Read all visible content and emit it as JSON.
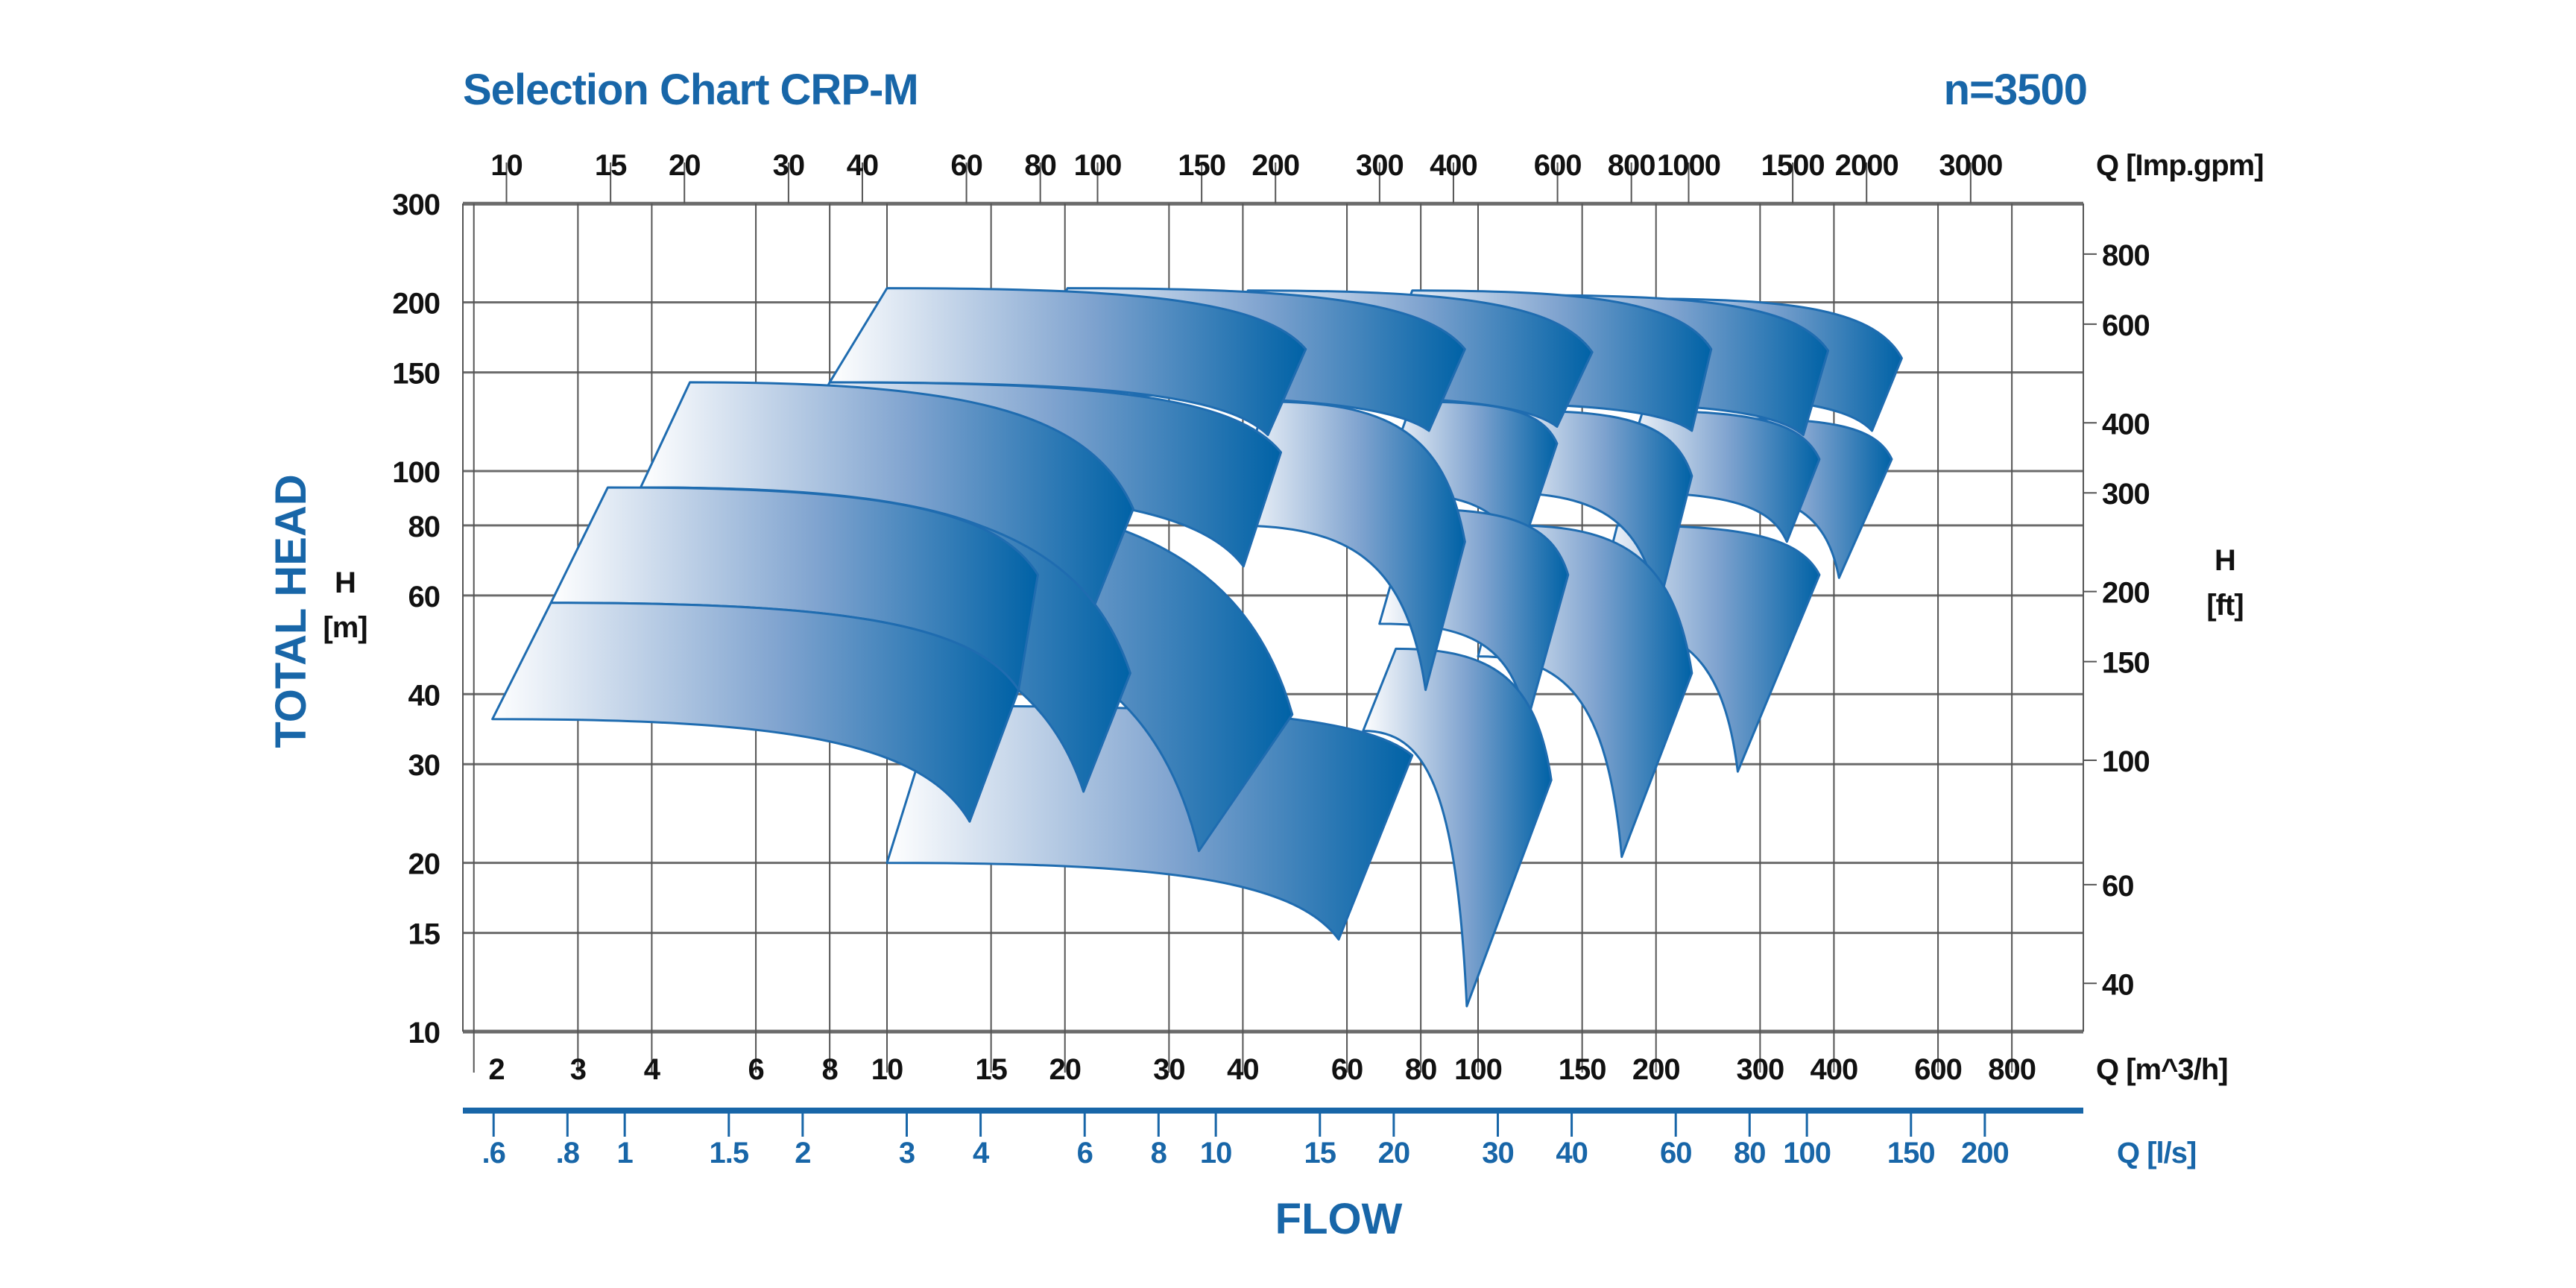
{
  "chart_data": {
    "type": "area",
    "title": "Selection Chart CRP-M",
    "speed_label": "n=3500",
    "ylabel": "TOTAL HEAD",
    "ylabel_left_unit": [
      "H",
      "[m]"
    ],
    "ylabel_right_unit": [
      "H",
      "[ft]"
    ],
    "xlabel": "FLOW",
    "x_scale": "log",
    "y_scale": "log",
    "xlim_m3h": [
      1.9,
      1050
    ],
    "ylim_m": [
      10,
      300
    ],
    "grid": true,
    "colors": {
      "accent": "#1866a8",
      "fill_dark": "#0062a6",
      "fill_light": "#ffffff",
      "grid": "#666666"
    },
    "y_ticks_m": [
      "10",
      "15",
      "20",
      "30",
      "40",
      "60",
      "80",
      "100",
      "150",
      "200",
      "300"
    ],
    "y_ticks_ft": [
      "40",
      "60",
      "100",
      "150",
      "200",
      "300",
      "400",
      "600",
      "800"
    ],
    "x_axis_m3h": {
      "label": "Q [m^3/h]",
      "ticks": [
        "2",
        "3",
        "4",
        "6",
        "8",
        "10",
        "15",
        "20",
        "30",
        "40",
        "60",
        "80",
        "100",
        "150",
        "200",
        "300",
        "400",
        "600",
        "800"
      ]
    },
    "x_axis_gpm": {
      "label": "Q [Imp.gpm]",
      "ticks": [
        "10",
        "15",
        "20",
        "30",
        "40",
        "60",
        "80",
        "100",
        "150",
        "200",
        "300",
        "400",
        "600",
        "800",
        "1000",
        "1500",
        "2000",
        "3000"
      ]
    },
    "x_axis_ls": {
      "label": "Q [l/s]",
      "ticks": [
        ".6",
        ".8",
        "1",
        "1.5",
        "2",
        "3",
        "4",
        "6",
        "8",
        "10",
        "15",
        "20",
        "30",
        "40",
        "60",
        "80",
        "100",
        "150",
        "200"
      ]
    },
    "regions_note": "each region corners [Q m3/h, H m]: top-left, top-right, bottom-right, bottom-left",
    "regions": [
      {
        "tl": [
          190,
          203
        ],
        "tr": [
          521,
          159
        ],
        "br": [
          464,
          118
        ],
        "bl": [
          162,
          137
        ]
      },
      {
        "tl": [
          278,
          124
        ],
        "tr": [
          501,
          105
        ],
        "br": [
          408,
          64.5
        ],
        "bl": [
          245,
          91.6
        ]
      },
      {
        "tl": [
          121,
          206
        ],
        "tr": [
          391,
          164
        ],
        "br": [
          355,
          116
        ],
        "bl": [
          103,
          133
        ]
      },
      {
        "tl": [
          190,
          128
        ],
        "tr": [
          378,
          105
        ],
        "br": [
          333,
          74.8
        ],
        "bl": [
          172,
          91.6
        ]
      },
      {
        "tl": [
          172,
          80
        ],
        "tr": [
          378,
          65.3
        ],
        "br": [
          275,
          29.1
        ],
        "bl": [
          156,
          53.4
        ]
      },
      {
        "tl": [
          77.4,
          210
        ],
        "tr": [
          248,
          165
        ],
        "br": [
          230,
          118
        ],
        "bl": [
          65.9,
          133
        ]
      },
      {
        "tl": [
          121,
          128
        ],
        "tr": [
          230,
          98
        ],
        "br": [
          202,
          57.1
        ],
        "bl": [
          107,
          91.6
        ]
      },
      {
        "tl": [
          114,
          80
        ],
        "tr": [
          230,
          43.6
        ],
        "br": [
          175,
          20.5
        ],
        "bl": [
          100,
          46.7
        ]
      },
      {
        "tl": [
          40.8,
          210
        ],
        "tr": [
          156,
          163
        ],
        "br": [
          136,
          120
        ],
        "bl": [
          35.9,
          137
        ]
      },
      {
        "tl": [
          77.4,
          133
        ],
        "tr": [
          136,
          112
        ],
        "br": [
          117,
          69.9
        ],
        "bl": [
          68.1,
          91.6
        ]
      },
      {
        "tl": [
          77.4,
          85.6
        ],
        "tr": [
          142,
          65.3
        ],
        "br": [
          121,
          35.6
        ],
        "bl": [
          68.1,
          53.4
        ]
      },
      {
        "tl": [
          72.6,
          48.2
        ],
        "tr": [
          133,
          28.1
        ],
        "br": [
          95.7,
          11.1
        ],
        "bl": [
          63.9,
          34.4
        ]
      },
      {
        "tl": [
          20.2,
          212
        ],
        "tr": [
          95,
          165
        ],
        "br": [
          82.6,
          118
        ],
        "bl": [
          16.7,
          137
        ]
      },
      {
        "tl": [
          43.5,
          133
        ],
        "tr": [
          95,
          74.8
        ],
        "br": [
          81.5,
          40.7
        ],
        "bl": [
          38.3,
          80
        ]
      },
      {
        "tl": [
          12.1,
          38.1
        ],
        "tr": [
          77.4,
          31.1
        ],
        "br": [
          58.1,
          14.6
        ],
        "bl": [
          10,
          20
        ]
      },
      {
        "tl": [
          10,
          212
        ],
        "tr": [
          51.1,
          165
        ],
        "br": [
          44.1,
          116
        ],
        "bl": [
          8,
          144
        ]
      },
      {
        "tl": [
          8,
          144
        ],
        "tr": [
          46.4,
          108
        ],
        "br": [
          40.1,
          67.6
        ],
        "bl": [
          6.39,
          93.5
        ]
      },
      {
        "tl": [
          6.39,
          93.5
        ],
        "tr": [
          48.5,
          36.8
        ],
        "br": [
          33.7,
          21
        ],
        "bl": [
          5.27,
          58.2
        ]
      },
      {
        "tl": [
          4.64,
          144
        ],
        "tr": [
          26.1,
          85.6
        ],
        "br": [
          21.8,
          53.4
        ],
        "bl": [
          3.83,
          93.5
        ]
      },
      {
        "tl": [
          3.83,
          93.5
        ],
        "tr": [
          25.8,
          43.6
        ],
        "br": [
          21.5,
          26.8
        ],
        "bl": [
          3.16,
          58.2
        ]
      },
      {
        "tl": [
          3.37,
          93.5
        ],
        "tr": [
          18,
          65.3
        ],
        "br": [
          16.7,
          40.7
        ],
        "bl": [
          2.7,
          58.2
        ]
      },
      {
        "tl": [
          2.7,
          58.2
        ],
        "tr": [
          16.7,
          40.7
        ],
        "br": [
          13.8,
          23.7
        ],
        "bl": [
          2.15,
          36.1
        ]
      }
    ]
  }
}
